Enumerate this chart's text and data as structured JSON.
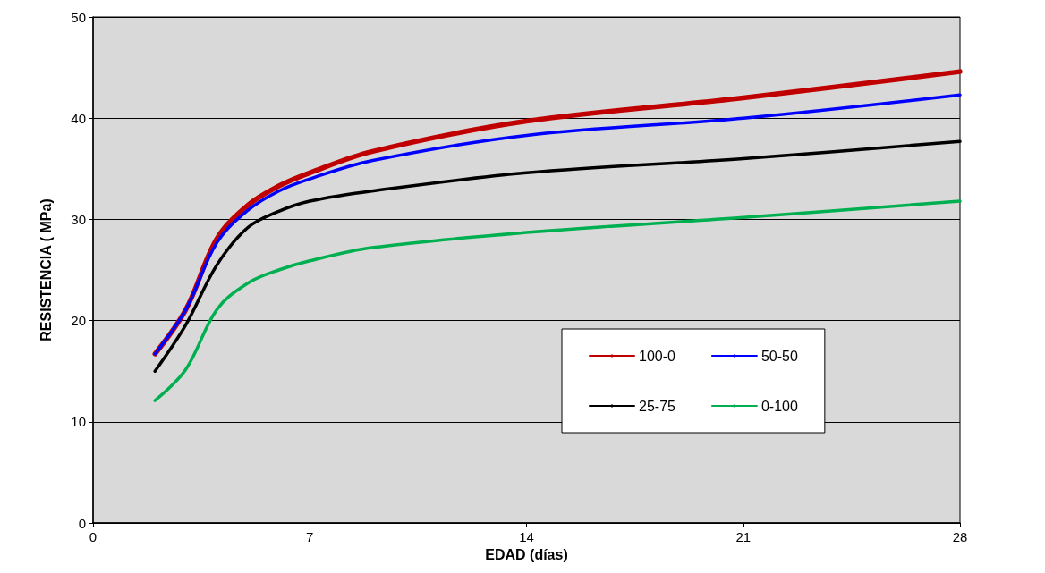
{
  "chart_data": {
    "type": "line",
    "xlabel": "EDAD (días)",
    "ylabel": "RESISTENCIA ( MPa)",
    "x": [
      2,
      3,
      4,
      5,
      6,
      7,
      9,
      14,
      21,
      28
    ],
    "series": [
      {
        "name": "100-0",
        "color": "#c00000",
        "values": [
          16.7,
          21.1,
          28.1,
          31.4,
          33.3,
          34.6,
          36.7,
          39.7,
          42.0,
          44.6
        ]
      },
      {
        "name": "50-50",
        "color": "#0000ff",
        "values": [
          16.7,
          21.1,
          27.7,
          30.9,
          32.8,
          34.0,
          35.8,
          38.3,
          40.0,
          42.3
        ]
      },
      {
        "name": "25-75",
        "color": "#000000",
        "values": [
          15.0,
          19.6,
          25.5,
          29.2,
          30.8,
          31.8,
          32.8,
          34.6,
          36.0,
          37.7
        ]
      },
      {
        "name": "0-100",
        "color": "#00b050",
        "values": [
          12.1,
          15.2,
          21.1,
          23.7,
          25.0,
          25.9,
          27.2,
          28.7,
          30.2,
          31.8
        ]
      }
    ],
    "xlim": [
      0,
      28
    ],
    "xticks": [
      0,
      7,
      14,
      21,
      28
    ],
    "ylim": [
      0,
      50
    ],
    "yticks": [
      0,
      10,
      20,
      30,
      40,
      50
    ],
    "grid": "y",
    "legend": "bottom right",
    "marker": "none",
    "line_style": "solid"
  }
}
